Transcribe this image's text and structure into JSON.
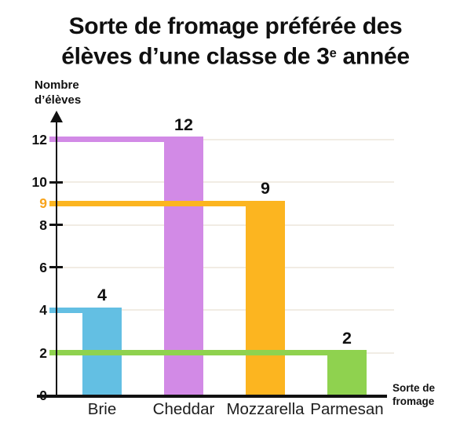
{
  "title": {
    "line1": "Sorte de fromage préférée des",
    "line2_prefix": "élèves d’une classe de 3",
    "line2_sup": "e",
    "line2_suffix": " année"
  },
  "y_axis_title": {
    "line1": "Nombre",
    "line2": "d’élèves"
  },
  "x_axis_title": {
    "line1": "Sorte de",
    "line2": "fromage"
  },
  "chart_data": {
    "type": "bar",
    "title": "Sorte de fromage préférée des élèves d’une classe de 3e année",
    "xlabel": "Sorte de fromage",
    "ylabel": "Nombre d’élèves",
    "categories": [
      "Brie",
      "Cheddar",
      "Mozzarella",
      "Parmesan"
    ],
    "values": [
      4,
      12,
      9,
      2
    ],
    "value_labels": [
      "4",
      "12",
      "9",
      "2"
    ],
    "bar_colors": [
      "#63bfe3",
      "#d28ae6",
      "#fcb520",
      "#8fd24f"
    ],
    "ylim": [
      0,
      13
    ],
    "yticks": [
      0,
      2,
      4,
      6,
      8,
      9,
      10,
      12
    ],
    "gridline_values": [
      2,
      4,
      6,
      8,
      10,
      12
    ],
    "highlight_ytick": 9,
    "highlight_ytick_color": "#f8a41d",
    "grid": "horizontal-light",
    "grid_color": "#f1ece4",
    "axis_color": "#111111",
    "legend": "none",
    "annotation_lines": [
      {
        "value": 4,
        "color": "#63bfe3",
        "to_category": "Brie"
      },
      {
        "value": 12,
        "color": "#d28ae6",
        "to_category": "Cheddar"
      },
      {
        "value": 9,
        "color": "#fcb520",
        "to_category": "Mozzarella"
      },
      {
        "value": 2,
        "color": "#8fd24f",
        "to_category": "Parmesan"
      }
    ]
  }
}
